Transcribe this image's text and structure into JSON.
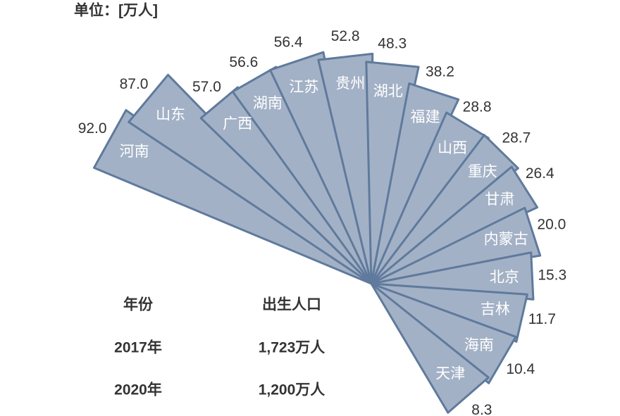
{
  "chart_data": {
    "type": "fan",
    "unit_label": "单位：[万人]",
    "categories": [
      "河南",
      "山东",
      "广西",
      "湖南",
      "江苏",
      "贵州",
      "湖北",
      "福建",
      "山西",
      "重庆",
      "甘肃",
      "内蒙古",
      "北京",
      "吉林",
      "海南",
      "天津"
    ],
    "values": [
      92.0,
      87.0,
      57.0,
      56.6,
      56.4,
      52.8,
      48.3,
      38.2,
      28.8,
      28.7,
      26.4,
      20.0,
      15.3,
      11.7,
      10.4,
      8.3
    ],
    "value_labels": [
      "92.0",
      "87.0",
      "57.0",
      "56.6",
      "56.4",
      "52.8",
      "48.3",
      "38.2",
      "28.8",
      "28.7",
      "26.4",
      "20.0",
      "15.3",
      "11.7",
      "10.4",
      "8.3"
    ],
    "color": "#a3b1c6",
    "table": {
      "header": [
        "年份",
        "出生人口"
      ],
      "rows": [
        [
          "2017年",
          "1,723万人"
        ],
        [
          "2020年",
          "1,200万人"
        ]
      ]
    }
  }
}
